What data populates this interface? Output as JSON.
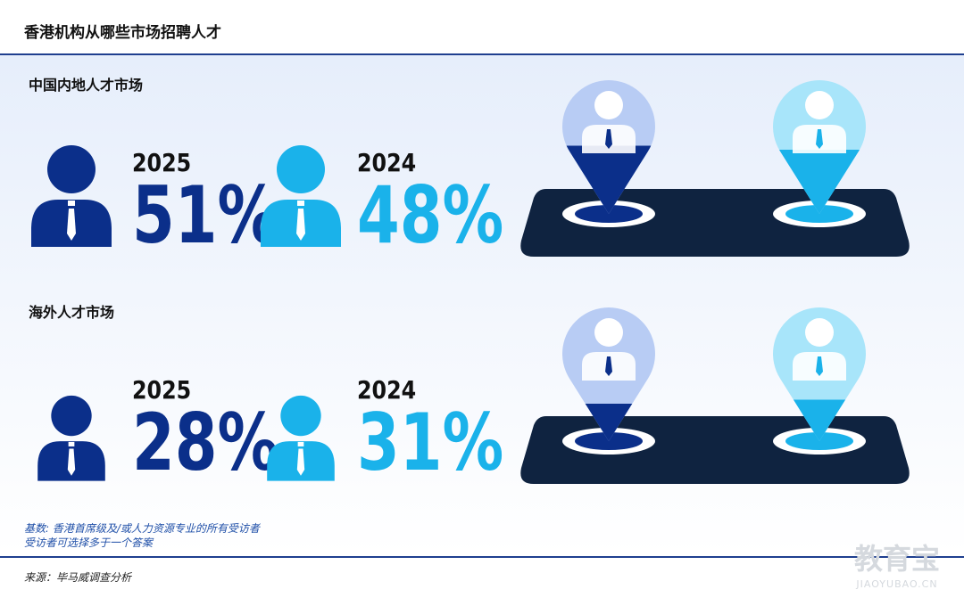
{
  "title": "香港机构从哪些市场招聘人才",
  "sections": [
    {
      "label": "中国内地人才市场",
      "items": [
        {
          "year": "2025",
          "value": 51,
          "value_label": "51%"
        },
        {
          "year": "2024",
          "value": 48,
          "value_label": "48%"
        }
      ]
    },
    {
      "label": "海外人才市场",
      "items": [
        {
          "year": "2025",
          "value": 28,
          "value_label": "28%"
        },
        {
          "year": "2024",
          "value": 31,
          "value_label": "31%"
        }
      ]
    }
  ],
  "notes": [
    "基数: 香港首席级及/或人力资源专业的所有受访者",
    "受访者可选择多于一个答案"
  ],
  "source": "来源：毕马威调查分析",
  "watermark": {
    "brand": "教育宝",
    "url": "JIAOYUBAO.CN"
  }
}
